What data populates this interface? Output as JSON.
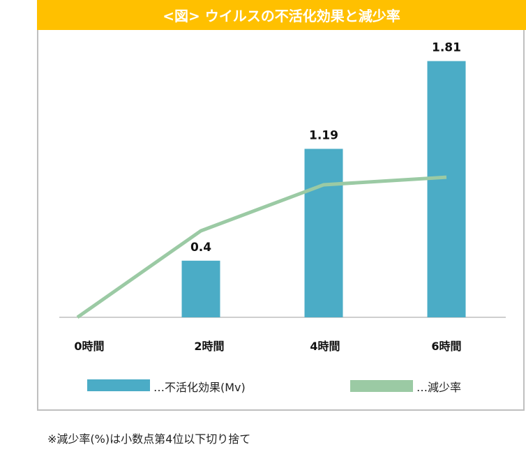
{
  "chart_data": {
    "type": "bar",
    "title": "<図> ウイルスの不活化効果と減少率",
    "categories": [
      "0時間",
      "2時間",
      "4時間",
      "6時間"
    ],
    "series": [
      {
        "name": "…不活化効果(Mv)",
        "type": "bar",
        "values": [
          0,
          0.4,
          1.19,
          1.81
        ],
        "data_labels": [
          "",
          "0.4",
          "1.19",
          "1.81"
        ],
        "color": "#4bacc6"
      },
      {
        "name": "…減少率",
        "type": "line",
        "values": [
          0,
          60.5,
          92.7,
          98.0
        ],
        "color": "#9bcaa4"
      }
    ],
    "grid": false,
    "legend": "bottom"
  },
  "footnote": "※減少率(%)は小数点第4位以下切り捨て"
}
